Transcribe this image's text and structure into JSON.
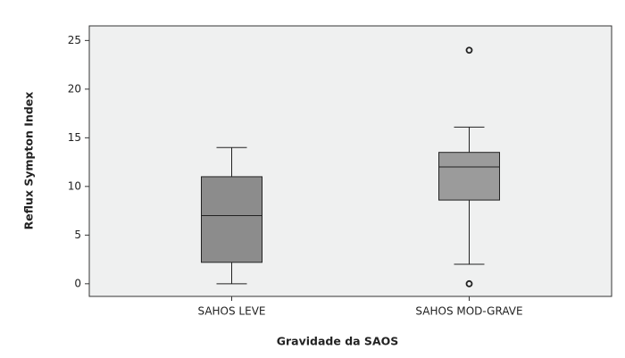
{
  "chart_data": {
    "type": "box",
    "x_label": "Gravidade da SAOS",
    "y_label": "Reflux Sympton Index",
    "categories": [
      "SAHOS LEVE",
      "SAHOS MOD-GRAVE"
    ],
    "boxes": [
      {
        "low": 0,
        "q1": 2.2,
        "median": 7,
        "q3": 11,
        "high": 14,
        "outliers": [],
        "color": "#8c8c8c"
      },
      {
        "low": 2,
        "q1": 8.6,
        "median": 12,
        "q3": 13.5,
        "high": 16.1,
        "outliers": [
          24,
          0
        ],
        "color": "#9b9b9b"
      }
    ],
    "ylim": [
      -1.3,
      26.5
    ],
    "yticks": [
      0,
      5,
      10,
      15,
      20,
      25
    ],
    "grid": false
  }
}
